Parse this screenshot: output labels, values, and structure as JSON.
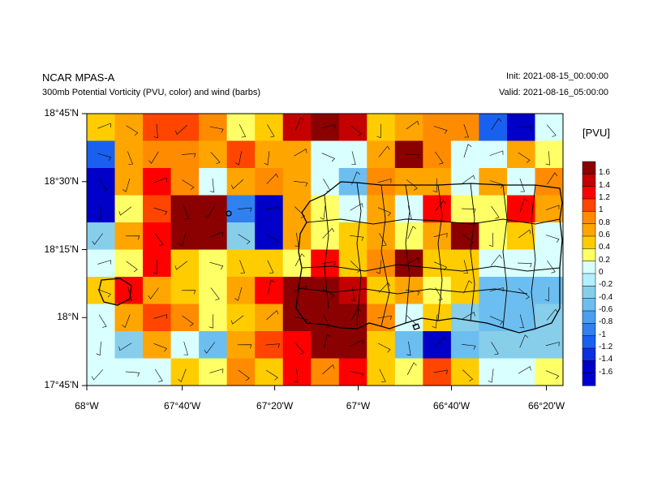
{
  "header": {
    "title": "NCAR MPAS-A",
    "subtitle": "300mb Potential Vorticity (PVU, color) and wind (barbs)",
    "init": "Init: 2021-08-15_00:00:00",
    "valid": "Valid: 2021-08-16_05:00:00"
  },
  "map": {
    "x_ticks": [
      "68°W",
      "67°40'W",
      "67°20'W",
      "67°W",
      "66°40'W",
      "66°20'W"
    ],
    "y_ticks": [
      "18°45'N",
      "18°30'N",
      "18°15'N",
      "18°N",
      "17°45'N"
    ],
    "lon_range": [
      -68.0,
      -66.25
    ],
    "lat_range": [
      17.75,
      18.75
    ],
    "grid_cols": 17,
    "grid_rows": 10,
    "pv_grid": [
      [
        0.4,
        0.6,
        1.0,
        1.0,
        0.8,
        0.2,
        0.4,
        1.4,
        1.8,
        1.4,
        0.4,
        0.6,
        0.8,
        0.8,
        -1.2,
        -1.6,
        0.0
      ],
      [
        -1.2,
        0.6,
        0.8,
        0.8,
        0.6,
        1.0,
        0.6,
        0.6,
        0.0,
        0.0,
        0.6,
        1.8,
        0.8,
        0.0,
        0.0,
        0.6,
        0.2
      ],
      [
        -1.6,
        0.6,
        1.2,
        0.8,
        0.0,
        0.6,
        0.8,
        0.6,
        0.0,
        -0.6,
        0.8,
        0.6,
        0.6,
        0.0,
        0.6,
        0.0,
        0.8
      ],
      [
        -1.6,
        0.2,
        1.0,
        1.8,
        1.8,
        -1.0,
        -1.6,
        0.6,
        0.2,
        0.0,
        0.6,
        0.0,
        1.2,
        0.2,
        0.2,
        1.2,
        0.6
      ],
      [
        -0.4,
        0.6,
        1.2,
        1.8,
        1.8,
        -0.4,
        -1.6,
        0.6,
        0.2,
        0.4,
        0.6,
        0.2,
        0.6,
        1.6,
        0.2,
        0.4,
        0.0
      ],
      [
        0.0,
        0.2,
        1.2,
        0.4,
        0.2,
        0.4,
        0.4,
        0.2,
        1.2,
        0.4,
        0.8,
        1.8,
        0.4,
        0.4,
        0.0,
        0.0,
        0.0
      ],
      [
        0.4,
        1.2,
        0.6,
        0.4,
        0.2,
        0.6,
        1.2,
        1.8,
        1.8,
        1.4,
        0.4,
        0.6,
        0.2,
        0.4,
        -0.6,
        -0.6,
        -0.6
      ],
      [
        0.0,
        0.6,
        1.0,
        0.8,
        0.2,
        0.4,
        0.6,
        1.8,
        1.8,
        1.8,
        0.8,
        0.0,
        0.4,
        -0.4,
        -0.6,
        -0.6,
        -0.4
      ],
      [
        0.0,
        -0.4,
        0.6,
        0.0,
        -0.6,
        0.6,
        1.0,
        1.2,
        1.8,
        1.8,
        0.4,
        -0.6,
        -1.6,
        -0.6,
        -0.4,
        -0.4,
        -0.4
      ],
      [
        0.0,
        0.0,
        0.0,
        0.4,
        0.2,
        0.8,
        0.4,
        1.2,
        0.8,
        1.2,
        0.4,
        0.2,
        1.0,
        0.4,
        0.0,
        0.0,
        0.2
      ]
    ]
  },
  "colorbar": {
    "title": "[PVU]",
    "levels": [
      "1.6",
      "1.4",
      "1.2",
      "1",
      "0.8",
      "0.6",
      "0.4",
      "0.2",
      "0",
      "-0.2",
      "-0.4",
      "-0.6",
      "-0.8",
      "-1",
      "-1.2",
      "-1.4",
      "-1.6"
    ],
    "colors": [
      "#8b0000",
      "#c40000",
      "#ff0000",
      "#ff4500",
      "#ff8c00",
      "#ffa500",
      "#ffcc00",
      "#ffff66",
      "#d9ffff",
      "#b3f0ff",
      "#87ceeb",
      "#6cbef0",
      "#4a9ff0",
      "#3080f0",
      "#1a60f0",
      "#0a30e0",
      "#0000c8",
      "#0000cd"
    ]
  }
}
